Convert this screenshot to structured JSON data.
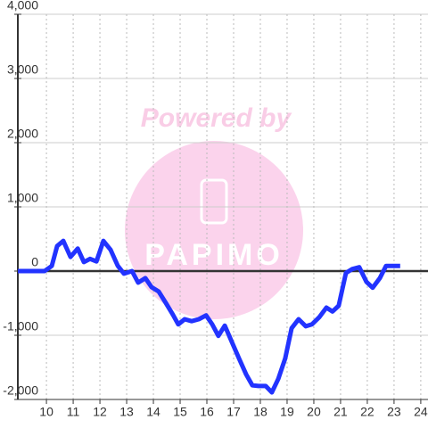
{
  "chart_data": {
    "type": "line",
    "watermark": {
      "title": "Powered by",
      "logo": "PAPIMO"
    },
    "xlim": [
      8.93,
      24.27
    ],
    "xticks": [
      10,
      11,
      12,
      13,
      14,
      15,
      16,
      17,
      18,
      19,
      20,
      21,
      22,
      23,
      24
    ],
    "ylim": [
      -2000,
      4000
    ],
    "yticks": [
      {
        "value": -2000,
        "label": "-2,000"
      },
      {
        "value": -1000,
        "label": "-1,000"
      },
      0,
      {
        "value": 1000,
        "label": "1,000"
      },
      {
        "value": 2000,
        "label": "2,000"
      },
      {
        "value": 3000,
        "label": "3,000"
      },
      {
        "value": 4000,
        "label": "4,000"
      }
    ],
    "grid": true,
    "series": [
      {
        "color": "#2233ff",
        "x": [
          8.93,
          9.93,
          10.2,
          10.4,
          10.63,
          10.9,
          11.17,
          11.4,
          11.63,
          11.87,
          12.13,
          12.4,
          12.67,
          12.9,
          13.2,
          13.43,
          13.7,
          13.93,
          14.2,
          14.47,
          14.73,
          14.93,
          15.17,
          15.43,
          15.7,
          15.97,
          16.2,
          16.43,
          16.67,
          16.93,
          17.2,
          17.47,
          17.7,
          17.93,
          18.2,
          18.43,
          18.67,
          18.93,
          19.17,
          19.43,
          19.7,
          19.93,
          20.2,
          20.47,
          20.7,
          20.93,
          21.2,
          21.43,
          21.7,
          21.97,
          22.2,
          22.47,
          22.7,
          22.97,
          23.23
        ],
        "values": [
          0,
          0,
          80,
          390,
          470,
          220,
          350,
          140,
          190,
          150,
          470,
          330,
          80,
          -40,
          0,
          -180,
          -110,
          -250,
          -320,
          -500,
          -680,
          -830,
          -750,
          -780,
          -750,
          -690,
          -830,
          -1010,
          -850,
          -1100,
          -1360,
          -1610,
          -1780,
          -1790,
          -1790,
          -1890,
          -1680,
          -1360,
          -890,
          -750,
          -860,
          -830,
          -720,
          -570,
          -630,
          -540,
          -30,
          30,
          60,
          -170,
          -260,
          -110,
          80,
          80,
          80
        ]
      }
    ]
  }
}
